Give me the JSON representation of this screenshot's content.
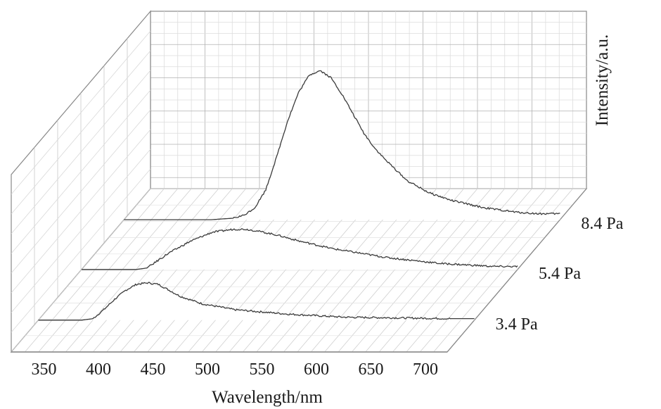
{
  "chart_data": {
    "type": "line",
    "style": "3d-waterfall",
    "title": "",
    "xlabel": "Wavelength/nm",
    "zlabel": "Intensity/a.u.",
    "xlim": [
      320,
      720
    ],
    "x_ticks": [
      350,
      400,
      450,
      500,
      550,
      600,
      650,
      700
    ],
    "ylim": [
      0,
      1
    ],
    "grid": true,
    "line_color": "#3a3a3a",
    "grid_color": "#bdbdbd",
    "frame_color": "#888888",
    "series": [
      {
        "name": "3.4 Pa",
        "x": [
          320,
          360,
          370,
          380,
          390,
          400,
          410,
          420,
          430,
          440,
          450,
          470,
          500,
          550,
          600,
          650,
          700
        ],
        "y": [
          0.0,
          0.0,
          0.01,
          0.07,
          0.14,
          0.2,
          0.24,
          0.25,
          0.24,
          0.2,
          0.16,
          0.11,
          0.07,
          0.04,
          0.02,
          0.015,
          0.01
        ]
      },
      {
        "name": "5.4 Pa",
        "x": [
          320,
          360,
          370,
          380,
          400,
          420,
          440,
          460,
          470,
          480,
          500,
          520,
          550,
          600,
          650,
          700
        ],
        "y": [
          0.0,
          0.0,
          0.0,
          0.01,
          0.11,
          0.19,
          0.25,
          0.27,
          0.27,
          0.26,
          0.23,
          0.19,
          0.14,
          0.08,
          0.04,
          0.02
        ]
      },
      {
        "name": "8.4 Pa",
        "x": [
          320,
          370,
          400,
          420,
          430,
          440,
          450,
          460,
          470,
          480,
          490,
          500,
          510,
          520,
          530,
          540,
          550,
          560,
          580,
          600,
          620,
          650,
          680,
          700
        ],
        "y": [
          0.0,
          0.0,
          0.0,
          0.01,
          0.03,
          0.08,
          0.2,
          0.42,
          0.66,
          0.85,
          0.97,
          1.0,
          0.95,
          0.84,
          0.71,
          0.58,
          0.48,
          0.4,
          0.26,
          0.18,
          0.13,
          0.08,
          0.05,
          0.04
        ]
      }
    ]
  }
}
